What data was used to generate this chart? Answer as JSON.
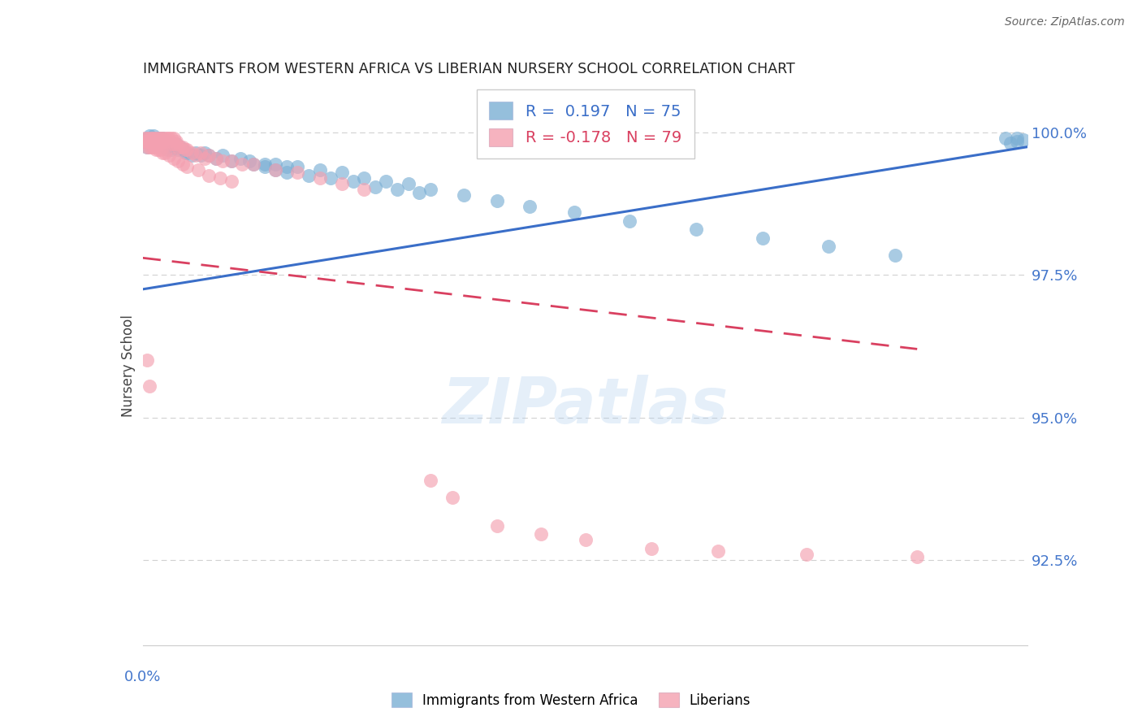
{
  "title": "IMMIGRANTS FROM WESTERN AFRICA VS LIBERIAN NURSERY SCHOOL CORRELATION CHART",
  "source": "Source: ZipAtlas.com",
  "ylabel": "Nursery School",
  "ytick_values": [
    1.0,
    0.975,
    0.95,
    0.925
  ],
  "xmin": 0.0,
  "xmax": 0.4,
  "ymin": 0.91,
  "ymax": 1.008,
  "legend_blue_r": "R =  0.197",
  "legend_blue_n": "N = 75",
  "legend_pink_r": "R = -0.178",
  "legend_pink_n": "N = 79",
  "blue_color": "#7BAFD4",
  "pink_color": "#F4A0B0",
  "trendline_blue_color": "#3A6EC8",
  "trendline_pink_color": "#D94060",
  "grid_color": "#CCCCCC",
  "axis_label_color": "#4477CC",
  "watermark_color": "#AACCEE",
  "blue_scatter_x": [
    0.001,
    0.002,
    0.002,
    0.003,
    0.003,
    0.004,
    0.005,
    0.005,
    0.006,
    0.007,
    0.007,
    0.008,
    0.008,
    0.009,
    0.009,
    0.01,
    0.01,
    0.011,
    0.011,
    0.012,
    0.012,
    0.013,
    0.013,
    0.014,
    0.015,
    0.015,
    0.016,
    0.017,
    0.018,
    0.019,
    0.02,
    0.022,
    0.024,
    0.026,
    0.028,
    0.03,
    0.033,
    0.036,
    0.04,
    0.044,
    0.048,
    0.055,
    0.06,
    0.065,
    0.07,
    0.08,
    0.09,
    0.1,
    0.11,
    0.12,
    0.13,
    0.145,
    0.16,
    0.175,
    0.195,
    0.22,
    0.25,
    0.28,
    0.31,
    0.34,
    0.05,
    0.055,
    0.06,
    0.065,
    0.075,
    0.085,
    0.095,
    0.105,
    0.115,
    0.125,
    0.39,
    0.395,
    0.398,
    0.395,
    0.392
  ],
  "blue_scatter_y": [
    0.9985,
    0.9975,
    0.999,
    0.9985,
    0.9995,
    0.998,
    0.9985,
    0.9995,
    0.9985,
    0.9975,
    0.999,
    0.9975,
    0.9985,
    0.998,
    0.999,
    0.9975,
    0.9985,
    0.997,
    0.998,
    0.9975,
    0.998,
    0.997,
    0.9975,
    0.9975,
    0.9975,
    0.998,
    0.997,
    0.9975,
    0.997,
    0.9965,
    0.9965,
    0.996,
    0.9965,
    0.996,
    0.9965,
    0.996,
    0.9955,
    0.996,
    0.995,
    0.9955,
    0.995,
    0.9945,
    0.9945,
    0.994,
    0.994,
    0.9935,
    0.993,
    0.992,
    0.9915,
    0.991,
    0.99,
    0.989,
    0.988,
    0.987,
    0.986,
    0.9845,
    0.983,
    0.9815,
    0.98,
    0.9785,
    0.9945,
    0.994,
    0.9935,
    0.993,
    0.9925,
    0.992,
    0.9915,
    0.9905,
    0.99,
    0.9895,
    0.999,
    0.999,
    0.9988,
    0.9985,
    0.9982
  ],
  "pink_scatter_x": [
    0.001,
    0.001,
    0.002,
    0.002,
    0.003,
    0.003,
    0.004,
    0.004,
    0.005,
    0.005,
    0.006,
    0.006,
    0.007,
    0.007,
    0.008,
    0.008,
    0.009,
    0.009,
    0.01,
    0.01,
    0.011,
    0.011,
    0.012,
    0.012,
    0.013,
    0.013,
    0.014,
    0.014,
    0.015,
    0.015,
    0.016,
    0.017,
    0.018,
    0.019,
    0.02,
    0.022,
    0.024,
    0.026,
    0.028,
    0.03,
    0.033,
    0.036,
    0.04,
    0.045,
    0.05,
    0.06,
    0.07,
    0.08,
    0.09,
    0.1,
    0.002,
    0.003,
    0.004,
    0.005,
    0.006,
    0.007,
    0.008,
    0.009,
    0.01,
    0.012,
    0.014,
    0.016,
    0.018,
    0.02,
    0.025,
    0.03,
    0.035,
    0.04,
    0.002,
    0.003,
    0.13,
    0.14,
    0.16,
    0.18,
    0.2,
    0.23,
    0.26,
    0.3,
    0.35
  ],
  "pink_scatter_y": [
    0.9985,
    0.999,
    0.9985,
    0.999,
    0.9985,
    0.999,
    0.9985,
    0.999,
    0.9985,
    0.999,
    0.9985,
    0.999,
    0.9985,
    0.999,
    0.998,
    0.999,
    0.9985,
    0.999,
    0.9985,
    0.999,
    0.9985,
    0.999,
    0.9985,
    0.999,
    0.998,
    0.999,
    0.998,
    0.999,
    0.998,
    0.9985,
    0.9975,
    0.9975,
    0.9975,
    0.997,
    0.997,
    0.9965,
    0.996,
    0.9965,
    0.9955,
    0.996,
    0.9955,
    0.995,
    0.995,
    0.9945,
    0.9945,
    0.9935,
    0.993,
    0.992,
    0.991,
    0.99,
    0.9975,
    0.9975,
    0.9975,
    0.9975,
    0.997,
    0.997,
    0.997,
    0.9965,
    0.9965,
    0.996,
    0.9955,
    0.995,
    0.9945,
    0.994,
    0.9935,
    0.9925,
    0.992,
    0.9915,
    0.96,
    0.9555,
    0.939,
    0.936,
    0.931,
    0.9295,
    0.9285,
    0.927,
    0.9265,
    0.926,
    0.9255
  ],
  "blue_trendline_x": [
    0.0,
    0.4
  ],
  "blue_trendline_y": [
    0.9725,
    0.9975
  ],
  "pink_trendline_x": [
    0.0,
    0.35
  ],
  "pink_trendline_y": [
    0.978,
    0.962
  ]
}
